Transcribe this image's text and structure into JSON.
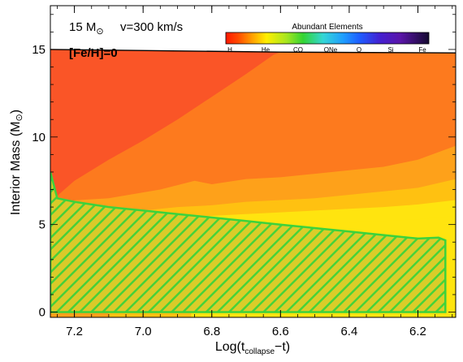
{
  "chart_data": {
    "type": "area",
    "title": "",
    "annotation": {
      "mass_label": "15 M",
      "velocity_label": "v=300 km/s",
      "metallicity_label": "[Fe/H]=0",
      "sun_symbol": "⊙"
    },
    "xlabel": {
      "prefix": "Log(t",
      "subscript": "collapse",
      "suffix": "−t)"
    },
    "ylabel": {
      "main": "Interior Mass (M",
      "sun_symbol": "⊙",
      "close": ")"
    },
    "xlim": [
      7.27,
      6.09
    ],
    "ylim": [
      -0.3,
      17.5
    ],
    "x_ticks": [
      7.2,
      7.0,
      6.8,
      6.6,
      6.4,
      6.2
    ],
    "x_tick_labels": [
      "7.2",
      "7.0",
      "6.8",
      "6.6",
      "6.4",
      "6.2"
    ],
    "y_ticks": [
      0,
      5,
      10,
      15
    ],
    "y_tick_labels": [
      "0",
      "5",
      "10",
      "15"
    ],
    "colorbar": {
      "title": "Abundant Elements",
      "labels": [
        "H",
        "He",
        "CO",
        "ONe",
        "O",
        "Si",
        "Fe"
      ],
      "colors": [
        "#ff2a00",
        "#ffee00",
        "#33d433",
        "#35d6d6",
        "#1e5cff",
        "#5a15c8",
        "#150a30"
      ]
    },
    "colors": {
      "outer": "#fa5527",
      "band1": "#fd7a1e",
      "band2": "#fea11a",
      "band3": "#ffc111",
      "band4": "#ffe40f",
      "core_hatch": "#3cd23c",
      "core_fill": "#d8cc2a"
    },
    "surface": {
      "x": [
        7.27,
        6.6,
        6.09
      ],
      "y": [
        15.0,
        14.85,
        14.8
      ]
    },
    "outer_boundary": {
      "x": [
        7.27,
        7.2,
        7.1,
        7.0,
        6.9,
        6.8,
        6.7,
        6.62,
        6.6
      ],
      "y": [
        6.3,
        7.5,
        8.7,
        9.8,
        11.0,
        12.3,
        13.6,
        14.7,
        14.85
      ]
    },
    "bands": [
      {
        "x": [
          7.27,
          7.1,
          6.95,
          6.85,
          6.8,
          6.7,
          6.6,
          6.5,
          6.4,
          6.3,
          6.2,
          6.09
        ],
        "y": [
          6.3,
          6.5,
          7.0,
          7.5,
          7.3,
          7.6,
          7.7,
          7.9,
          8.1,
          8.3,
          8.7,
          9.5
        ]
      },
      {
        "x": [
          7.1,
          7.0,
          6.9,
          6.8,
          6.7,
          6.6,
          6.5,
          6.4,
          6.3,
          6.2,
          6.09
        ],
        "y": [
          5.6,
          5.8,
          6.0,
          6.1,
          6.3,
          6.4,
          6.5,
          6.7,
          6.9,
          7.1,
          7.6
        ]
      },
      {
        "x": [
          6.86,
          6.8,
          6.7,
          6.6,
          6.5,
          6.4,
          6.3,
          6.2,
          6.09
        ],
        "y": [
          5.4,
          5.5,
          5.6,
          5.7,
          5.8,
          5.9,
          6.0,
          6.15,
          6.4
        ]
      },
      {
        "x": [
          6.62,
          6.5,
          6.4,
          6.3,
          6.2,
          6.09
        ],
        "y": [
          4.9,
          5.0,
          5.1,
          5.2,
          5.3,
          5.5
        ]
      }
    ],
    "convective_core": {
      "x": [
        7.27,
        7.25,
        7.2,
        7.1,
        7.0,
        6.9,
        6.8,
        6.7,
        6.6,
        6.5,
        6.4,
        6.3,
        6.2,
        6.14,
        6.12,
        6.12
      ],
      "y": [
        8.0,
        6.5,
        6.3,
        6.0,
        5.8,
        5.6,
        5.4,
        5.2,
        5.0,
        4.8,
        4.6,
        4.4,
        4.2,
        4.25,
        4.1,
        0.0
      ]
    }
  }
}
